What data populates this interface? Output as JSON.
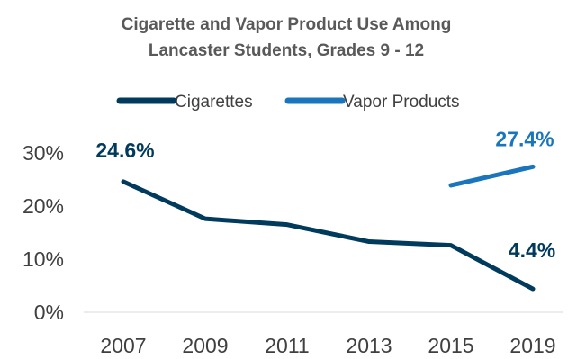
{
  "chart_data": {
    "type": "line",
    "title_lines": [
      "Cigarette and Vapor Product Use Among",
      "Lancaster Students, Grades 9 - 12"
    ],
    "xlabel": "",
    "ylabel": "",
    "categories": [
      "2007",
      "2009",
      "2011",
      "2013",
      "2015",
      "2019"
    ],
    "ylim": [
      0,
      30
    ],
    "y_ticks": [
      0,
      10,
      20,
      30
    ],
    "y_tick_labels": [
      "0%",
      "10%",
      "20%",
      "30%"
    ],
    "grid": false,
    "legend_position": "top",
    "series": [
      {
        "name": "Cigarettes",
        "color": "#003A5D",
        "values": [
          24.6,
          17.6,
          16.5,
          13.3,
          12.6,
          4.4
        ],
        "labels": [
          "24.6%",
          null,
          null,
          null,
          null,
          "4.4%"
        ]
      },
      {
        "name": "Vapor Products",
        "color": "#1A75BC",
        "values": [
          null,
          null,
          null,
          null,
          23.9,
          27.4
        ],
        "labels": [
          null,
          null,
          null,
          null,
          null,
          "27.4%"
        ]
      }
    ]
  }
}
